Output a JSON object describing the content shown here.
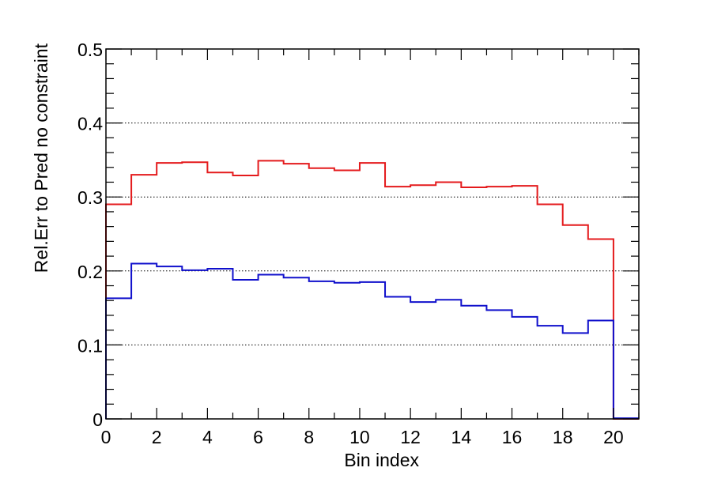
{
  "chart_data": {
    "type": "line",
    "step": true,
    "xlabel": "Bin index",
    "ylabel": "Rel.Err to Pred no constraint",
    "xlim": [
      0,
      21
    ],
    "ylim": [
      0,
      0.5
    ],
    "x_ticks": [
      0,
      2,
      4,
      6,
      8,
      10,
      12,
      14,
      16,
      18,
      20
    ],
    "x_tick_labels": [
      "0",
      "2",
      "4",
      "6",
      "8",
      "10",
      "12",
      "14",
      "16",
      "18",
      "20"
    ],
    "y_ticks": [
      0,
      0.1,
      0.2,
      0.3,
      0.4,
      0.5
    ],
    "y_tick_labels": [
      "0",
      "0.1",
      "0.2",
      "0.3",
      "0.4",
      "0.5"
    ],
    "grid": "horizontal dotted",
    "bin_edges": [
      0,
      1,
      2,
      3,
      4,
      5,
      6,
      7,
      8,
      9,
      10,
      11,
      12,
      13,
      14,
      15,
      16,
      17,
      18,
      19,
      20,
      21
    ],
    "series": [
      {
        "color": "#e41a1c",
        "values": [
          0.29,
          0.33,
          0.346,
          0.347,
          0.333,
          0.329,
          0.349,
          0.345,
          0.339,
          0.336,
          0.346,
          0.314,
          0.316,
          0.32,
          0.313,
          0.314,
          0.315,
          0.29,
          0.262,
          0.243,
          0.0
        ]
      },
      {
        "color": "#1010cc",
        "values": [
          0.163,
          0.21,
          0.206,
          0.201,
          0.203,
          0.188,
          0.195,
          0.191,
          0.186,
          0.184,
          0.185,
          0.165,
          0.158,
          0.161,
          0.153,
          0.147,
          0.138,
          0.126,
          0.116,
          0.133,
          0.001
        ]
      }
    ]
  }
}
